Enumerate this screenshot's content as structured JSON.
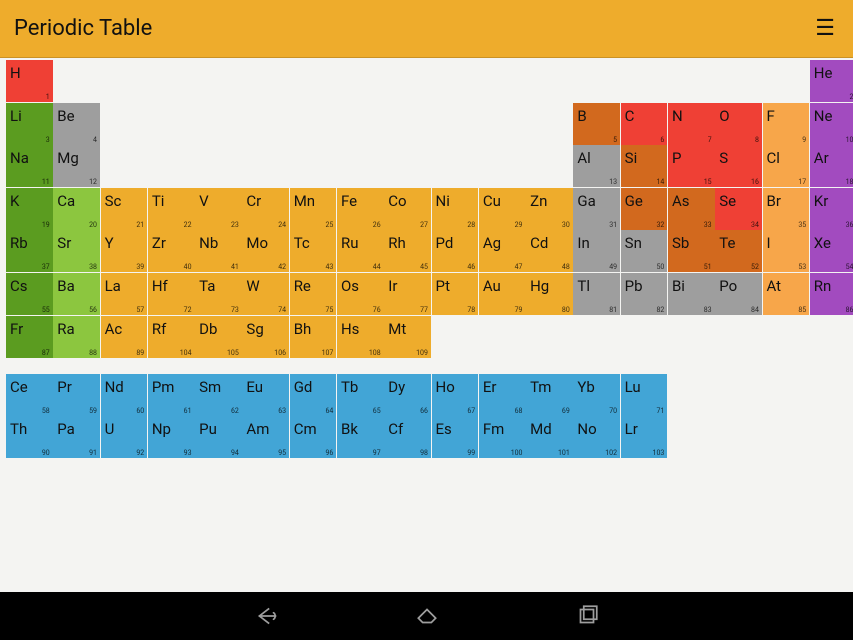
{
  "header": {
    "title": "Periodic Table"
  },
  "colors": {
    "alkali": "#5b9c20",
    "alkaline": "#8cc63f",
    "transition": "#eeac2c",
    "posttrans": "#9e9e9e",
    "metalloid": "#d2691e",
    "nonmetal_red": "#ef4035",
    "halogen": "#f7a64a",
    "noble": "#a24bbf",
    "lanth": "#42a5d6",
    "actin": "#42a5d6",
    "bg": "#f4f4f2"
  },
  "main": [
    [
      {
        "s": "H",
        "n": 1,
        "c": "nonmetal_red",
        "g": 1
      },
      {
        "s": "He",
        "n": 2,
        "c": "noble",
        "g": 18
      }
    ],
    [
      {
        "s": "Li",
        "n": 3,
        "c": "alkali",
        "g": 1
      },
      {
        "s": "Be",
        "n": 4,
        "c": "posttrans",
        "g": 2
      },
      {
        "s": "B",
        "n": 5,
        "c": "metalloid",
        "g": 13
      },
      {
        "s": "C",
        "n": 6,
        "c": "nonmetal_red",
        "g": 14
      },
      {
        "s": "N",
        "n": 7,
        "c": "nonmetal_red",
        "g": 15
      },
      {
        "s": "O",
        "n": 8,
        "c": "nonmetal_red",
        "g": 16
      },
      {
        "s": "F",
        "n": 9,
        "c": "halogen",
        "g": 17
      },
      {
        "s": "Ne",
        "n": 10,
        "c": "noble",
        "g": 18
      }
    ],
    [
      {
        "s": "Na",
        "n": 11,
        "c": "alkali",
        "g": 1
      },
      {
        "s": "Mg",
        "n": 12,
        "c": "posttrans",
        "g": 2
      },
      {
        "s": "Al",
        "n": 13,
        "c": "posttrans",
        "g": 13
      },
      {
        "s": "Si",
        "n": 14,
        "c": "metalloid",
        "g": 14
      },
      {
        "s": "P",
        "n": 15,
        "c": "nonmetal_red",
        "g": 15
      },
      {
        "s": "S",
        "n": 16,
        "c": "nonmetal_red",
        "g": 16
      },
      {
        "s": "Cl",
        "n": 17,
        "c": "halogen",
        "g": 17
      },
      {
        "s": "Ar",
        "n": 18,
        "c": "noble",
        "g": 18
      }
    ],
    [
      {
        "s": "K",
        "n": 19,
        "c": "alkali",
        "g": 1
      },
      {
        "s": "Ca",
        "n": 20,
        "c": "alkaline",
        "g": 2
      },
      {
        "s": "Sc",
        "n": 21,
        "c": "transition",
        "g": 3
      },
      {
        "s": "Ti",
        "n": 22,
        "c": "transition",
        "g": 4
      },
      {
        "s": "V",
        "n": 23,
        "c": "transition",
        "g": 5
      },
      {
        "s": "Cr",
        "n": 24,
        "c": "transition",
        "g": 6
      },
      {
        "s": "Mn",
        "n": 25,
        "c": "transition",
        "g": 7
      },
      {
        "s": "Fe",
        "n": 26,
        "c": "transition",
        "g": 8
      },
      {
        "s": "Co",
        "n": 27,
        "c": "transition",
        "g": 9
      },
      {
        "s": "Ni",
        "n": 28,
        "c": "transition",
        "g": 10
      },
      {
        "s": "Cu",
        "n": 29,
        "c": "transition",
        "g": 11
      },
      {
        "s": "Zn",
        "n": 30,
        "c": "transition",
        "g": 12
      },
      {
        "s": "Ga",
        "n": 31,
        "c": "posttrans",
        "g": 13
      },
      {
        "s": "Ge",
        "n": 32,
        "c": "metalloid",
        "g": 14
      },
      {
        "s": "As",
        "n": 33,
        "c": "metalloid",
        "g": 15
      },
      {
        "s": "Se",
        "n": 34,
        "c": "nonmetal_red",
        "g": 16
      },
      {
        "s": "Br",
        "n": 35,
        "c": "halogen",
        "g": 17
      },
      {
        "s": "Kr",
        "n": 36,
        "c": "noble",
        "g": 18
      }
    ],
    [
      {
        "s": "Rb",
        "n": 37,
        "c": "alkali",
        "g": 1
      },
      {
        "s": "Sr",
        "n": 38,
        "c": "alkaline",
        "g": 2
      },
      {
        "s": "Y",
        "n": 39,
        "c": "transition",
        "g": 3
      },
      {
        "s": "Zr",
        "n": 40,
        "c": "transition",
        "g": 4
      },
      {
        "s": "Nb",
        "n": 41,
        "c": "transition",
        "g": 5
      },
      {
        "s": "Mo",
        "n": 42,
        "c": "transition",
        "g": 6
      },
      {
        "s": "Tc",
        "n": 43,
        "c": "transition",
        "g": 7
      },
      {
        "s": "Ru",
        "n": 44,
        "c": "transition",
        "g": 8
      },
      {
        "s": "Rh",
        "n": 45,
        "c": "transition",
        "g": 9
      },
      {
        "s": "Pd",
        "n": 46,
        "c": "transition",
        "g": 10
      },
      {
        "s": "Ag",
        "n": 47,
        "c": "transition",
        "g": 11
      },
      {
        "s": "Cd",
        "n": 48,
        "c": "transition",
        "g": 12
      },
      {
        "s": "In",
        "n": 49,
        "c": "posttrans",
        "g": 13
      },
      {
        "s": "Sn",
        "n": 50,
        "c": "posttrans",
        "g": 14
      },
      {
        "s": "Sb",
        "n": 51,
        "c": "metalloid",
        "g": 15
      },
      {
        "s": "Te",
        "n": 52,
        "c": "metalloid",
        "g": 16
      },
      {
        "s": "I",
        "n": 53,
        "c": "halogen",
        "g": 17
      },
      {
        "s": "Xe",
        "n": 54,
        "c": "noble",
        "g": 18
      }
    ],
    [
      {
        "s": "Cs",
        "n": 55,
        "c": "alkali",
        "g": 1
      },
      {
        "s": "Ba",
        "n": 56,
        "c": "alkaline",
        "g": 2
      },
      {
        "s": "La",
        "n": 57,
        "c": "transition",
        "g": 3
      },
      {
        "s": "Hf",
        "n": 72,
        "c": "transition",
        "g": 4
      },
      {
        "s": "Ta",
        "n": 73,
        "c": "transition",
        "g": 5
      },
      {
        "s": "W",
        "n": 74,
        "c": "transition",
        "g": 6
      },
      {
        "s": "Re",
        "n": 75,
        "c": "transition",
        "g": 7
      },
      {
        "s": "Os",
        "n": 76,
        "c": "transition",
        "g": 8
      },
      {
        "s": "Ir",
        "n": 77,
        "c": "transition",
        "g": 9
      },
      {
        "s": "Pt",
        "n": 78,
        "c": "transition",
        "g": 10
      },
      {
        "s": "Au",
        "n": 79,
        "c": "transition",
        "g": 11
      },
      {
        "s": "Hg",
        "n": 80,
        "c": "transition",
        "g": 12
      },
      {
        "s": "Tl",
        "n": 81,
        "c": "posttrans",
        "g": 13
      },
      {
        "s": "Pb",
        "n": 82,
        "c": "posttrans",
        "g": 14
      },
      {
        "s": "Bi",
        "n": 83,
        "c": "posttrans",
        "g": 15
      },
      {
        "s": "Po",
        "n": 84,
        "c": "posttrans",
        "g": 16
      },
      {
        "s": "At",
        "n": 85,
        "c": "halogen",
        "g": 17
      },
      {
        "s": "Rn",
        "n": 86,
        "c": "noble",
        "g": 18
      }
    ],
    [
      {
        "s": "Fr",
        "n": 87,
        "c": "alkali",
        "g": 1
      },
      {
        "s": "Ra",
        "n": 88,
        "c": "alkaline",
        "g": 2
      },
      {
        "s": "Ac",
        "n": 89,
        "c": "transition",
        "g": 3
      },
      {
        "s": "Rf",
        "n": 104,
        "c": "transition",
        "g": 4
      },
      {
        "s": "Db",
        "n": 105,
        "c": "transition",
        "g": 5
      },
      {
        "s": "Sg",
        "n": 106,
        "c": "transition",
        "g": 6
      },
      {
        "s": "Bh",
        "n": 107,
        "c": "transition",
        "g": 7
      },
      {
        "s": "Hs",
        "n": 108,
        "c": "transition",
        "g": 8
      },
      {
        "s": "Mt",
        "n": 109,
        "c": "transition",
        "g": 9
      }
    ]
  ],
  "secondary": [
    [
      {
        "s": "Ce",
        "n": 58,
        "c": "lanth"
      },
      {
        "s": "Pr",
        "n": 59,
        "c": "lanth"
      },
      {
        "s": "Nd",
        "n": 60,
        "c": "lanth"
      },
      {
        "s": "Pm",
        "n": 61,
        "c": "lanth"
      },
      {
        "s": "Sm",
        "n": 62,
        "c": "lanth"
      },
      {
        "s": "Eu",
        "n": 63,
        "c": "lanth"
      },
      {
        "s": "Gd",
        "n": 64,
        "c": "lanth"
      },
      {
        "s": "Tb",
        "n": 65,
        "c": "lanth"
      },
      {
        "s": "Dy",
        "n": 66,
        "c": "lanth"
      },
      {
        "s": "Ho",
        "n": 67,
        "c": "lanth"
      },
      {
        "s": "Er",
        "n": 68,
        "c": "lanth"
      },
      {
        "s": "Tm",
        "n": 69,
        "c": "lanth"
      },
      {
        "s": "Yb",
        "n": 70,
        "c": "lanth"
      },
      {
        "s": "Lu",
        "n": 71,
        "c": "lanth"
      }
    ],
    [
      {
        "s": "Th",
        "n": 90,
        "c": "actin"
      },
      {
        "s": "Pa",
        "n": 91,
        "c": "actin"
      },
      {
        "s": "U",
        "n": 92,
        "c": "actin"
      },
      {
        "s": "Np",
        "n": 93,
        "c": "actin"
      },
      {
        "s": "Pu",
        "n": 94,
        "c": "actin"
      },
      {
        "s": "Am",
        "n": 95,
        "c": "actin"
      },
      {
        "s": "Cm",
        "n": 96,
        "c": "actin"
      },
      {
        "s": "Bk",
        "n": 97,
        "c": "actin"
      },
      {
        "s": "Cf",
        "n": 98,
        "c": "actin"
      },
      {
        "s": "Es",
        "n": 99,
        "c": "actin"
      },
      {
        "s": "Fm",
        "n": 100,
        "c": "actin"
      },
      {
        "s": "Md",
        "n": 101,
        "c": "actin"
      },
      {
        "s": "No",
        "n": 102,
        "c": "actin"
      },
      {
        "s": "Lr",
        "n": 103,
        "c": "actin"
      }
    ]
  ]
}
